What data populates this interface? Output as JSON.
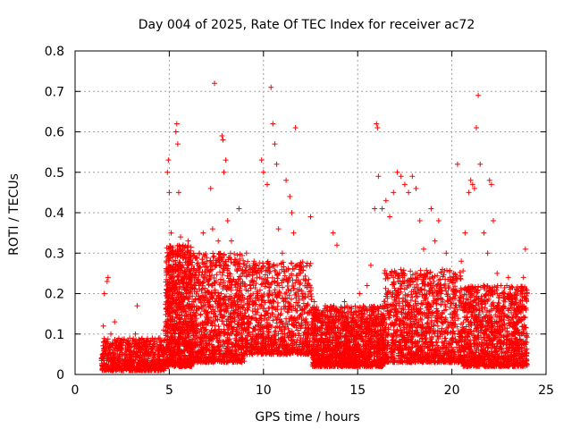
{
  "chart_data": {
    "type": "scatter",
    "title": "Day 004 of 2025, Rate Of TEC Index for receiver ac72",
    "xlabel": "GPS time / hours",
    "ylabel": "ROTI / TECUs",
    "xlim": [
      0,
      25
    ],
    "ylim": [
      0,
      0.8
    ],
    "xticks": [
      "0",
      "5",
      "10",
      "15",
      "20",
      "25"
    ],
    "yticks": [
      "0",
      "0.1",
      "0.2",
      "0.3",
      "0.4",
      "0.5",
      "0.6",
      "0.7",
      "0.8"
    ],
    "grid": true,
    "marker": "+",
    "series_color": "#ff0000",
    "series": [
      {
        "points": [
          [
            1.4,
            0.04
          ],
          [
            1.5,
            0.12
          ],
          [
            1.55,
            0.2
          ],
          [
            1.6,
            0.08
          ],
          [
            1.7,
            0.23
          ],
          [
            1.75,
            0.24
          ],
          [
            1.8,
            0.05
          ],
          [
            1.9,
            0.1
          ],
          [
            2.0,
            0.06
          ],
          [
            2.1,
            0.13
          ],
          [
            2.2,
            0.08
          ],
          [
            2.3,
            0.07
          ],
          [
            2.5,
            0.05
          ],
          [
            2.7,
            0.06
          ],
          [
            2.9,
            0.09
          ],
          [
            3.0,
            0.07
          ],
          [
            3.2,
            0.1
          ],
          [
            3.3,
            0.17
          ],
          [
            3.5,
            0.06
          ],
          [
            3.7,
            0.08
          ],
          [
            3.9,
            0.05
          ],
          [
            4.1,
            0.07
          ],
          [
            4.3,
            0.06
          ],
          [
            4.5,
            0.09
          ],
          [
            4.7,
            0.11
          ],
          [
            4.8,
            0.13
          ],
          [
            4.9,
            0.5
          ],
          [
            4.95,
            0.53
          ],
          [
            5.0,
            0.45
          ],
          [
            5.05,
            0.3
          ],
          [
            5.1,
            0.35
          ],
          [
            5.2,
            0.25
          ],
          [
            5.3,
            0.2
          ],
          [
            5.35,
            0.6
          ],
          [
            5.4,
            0.62
          ],
          [
            5.45,
            0.57
          ],
          [
            5.5,
            0.45
          ],
          [
            5.6,
            0.34
          ],
          [
            5.7,
            0.3
          ],
          [
            5.8,
            0.25
          ],
          [
            5.9,
            0.2
          ],
          [
            6.0,
            0.33
          ],
          [
            6.2,
            0.27
          ],
          [
            6.4,
            0.22
          ],
          [
            6.6,
            0.3
          ],
          [
            6.8,
            0.35
          ],
          [
            7.0,
            0.28
          ],
          [
            7.2,
            0.46
          ],
          [
            7.3,
            0.36
          ],
          [
            7.4,
            0.72
          ],
          [
            7.6,
            0.33
          ],
          [
            7.8,
            0.59
          ],
          [
            7.85,
            0.58
          ],
          [
            7.9,
            0.5
          ],
          [
            8.0,
            0.53
          ],
          [
            8.1,
            0.38
          ],
          [
            8.3,
            0.33
          ],
          [
            8.5,
            0.27
          ],
          [
            8.7,
            0.41
          ],
          [
            8.9,
            0.25
          ],
          [
            9.1,
            0.3
          ],
          [
            9.3,
            0.22
          ],
          [
            9.5,
            0.28
          ],
          [
            9.7,
            0.2
          ],
          [
            9.9,
            0.53
          ],
          [
            10.0,
            0.5
          ],
          [
            10.2,
            0.47
          ],
          [
            10.4,
            0.71
          ],
          [
            10.5,
            0.62
          ],
          [
            10.6,
            0.57
          ],
          [
            10.7,
            0.52
          ],
          [
            10.8,
            0.36
          ],
          [
            11.0,
            0.3
          ],
          [
            11.2,
            0.48
          ],
          [
            11.4,
            0.44
          ],
          [
            11.5,
            0.4
          ],
          [
            11.6,
            0.35
          ],
          [
            11.7,
            0.61
          ],
          [
            11.9,
            0.26
          ],
          [
            12.1,
            0.2
          ],
          [
            12.3,
            0.22
          ],
          [
            12.5,
            0.39
          ],
          [
            12.7,
            0.18
          ],
          [
            12.9,
            0.15
          ],
          [
            13.1,
            0.12
          ],
          [
            13.3,
            0.1
          ],
          [
            13.5,
            0.14
          ],
          [
            13.7,
            0.35
          ],
          [
            13.9,
            0.32
          ],
          [
            14.1,
            0.15
          ],
          [
            14.3,
            0.18
          ],
          [
            14.5,
            0.11
          ],
          [
            14.7,
            0.1
          ],
          [
            14.9,
            0.13
          ],
          [
            15.1,
            0.2
          ],
          [
            15.3,
            0.17
          ],
          [
            15.5,
            0.22
          ],
          [
            15.7,
            0.27
          ],
          [
            15.9,
            0.41
          ],
          [
            16.0,
            0.62
          ],
          [
            16.05,
            0.61
          ],
          [
            16.1,
            0.49
          ],
          [
            16.3,
            0.41
          ],
          [
            16.5,
            0.43
          ],
          [
            16.7,
            0.39
          ],
          [
            16.9,
            0.45
          ],
          [
            17.1,
            0.5
          ],
          [
            17.3,
            0.49
          ],
          [
            17.5,
            0.47
          ],
          [
            17.7,
            0.45
          ],
          [
            17.9,
            0.49
          ],
          [
            18.1,
            0.46
          ],
          [
            18.3,
            0.38
          ],
          [
            18.5,
            0.31
          ],
          [
            18.7,
            0.25
          ],
          [
            18.9,
            0.41
          ],
          [
            19.1,
            0.33
          ],
          [
            19.3,
            0.38
          ],
          [
            19.5,
            0.26
          ],
          [
            19.7,
            0.3
          ],
          [
            19.9,
            0.24
          ],
          [
            20.1,
            0.25
          ],
          [
            20.3,
            0.52
          ],
          [
            20.5,
            0.28
          ],
          [
            20.7,
            0.35
          ],
          [
            20.9,
            0.45
          ],
          [
            21.0,
            0.48
          ],
          [
            21.1,
            0.47
          ],
          [
            21.2,
            0.46
          ],
          [
            21.3,
            0.61
          ],
          [
            21.4,
            0.69
          ],
          [
            21.5,
            0.52
          ],
          [
            21.7,
            0.35
          ],
          [
            21.9,
            0.3
          ],
          [
            22.0,
            0.48
          ],
          [
            22.1,
            0.47
          ],
          [
            22.2,
            0.38
          ],
          [
            22.4,
            0.25
          ],
          [
            22.6,
            0.22
          ],
          [
            22.8,
            0.2
          ],
          [
            23.0,
            0.24
          ],
          [
            23.2,
            0.18
          ],
          [
            23.4,
            0.15
          ],
          [
            23.6,
            0.16
          ],
          [
            23.8,
            0.24
          ],
          [
            23.9,
            0.31
          ]
        ],
        "dense_bands": [
          {
            "x_from": 1.4,
            "x_to": 4.8,
            "y_low": 0.01,
            "y_high": 0.09,
            "count": 700
          },
          {
            "x_from": 4.8,
            "x_to": 6.2,
            "y_low": 0.02,
            "y_high": 0.32,
            "count": 900
          },
          {
            "x_from": 6.2,
            "x_to": 9.0,
            "y_low": 0.03,
            "y_high": 0.3,
            "count": 1000
          },
          {
            "x_from": 9.0,
            "x_to": 12.6,
            "y_low": 0.05,
            "y_high": 0.28,
            "count": 900
          },
          {
            "x_from": 12.6,
            "x_to": 16.4,
            "y_low": 0.02,
            "y_high": 0.17,
            "count": 1400
          },
          {
            "x_from": 16.4,
            "x_to": 20.6,
            "y_low": 0.03,
            "y_high": 0.26,
            "count": 1200
          },
          {
            "x_from": 20.6,
            "x_to": 24.0,
            "y_low": 0.02,
            "y_high": 0.22,
            "count": 1200
          }
        ]
      }
    ]
  }
}
